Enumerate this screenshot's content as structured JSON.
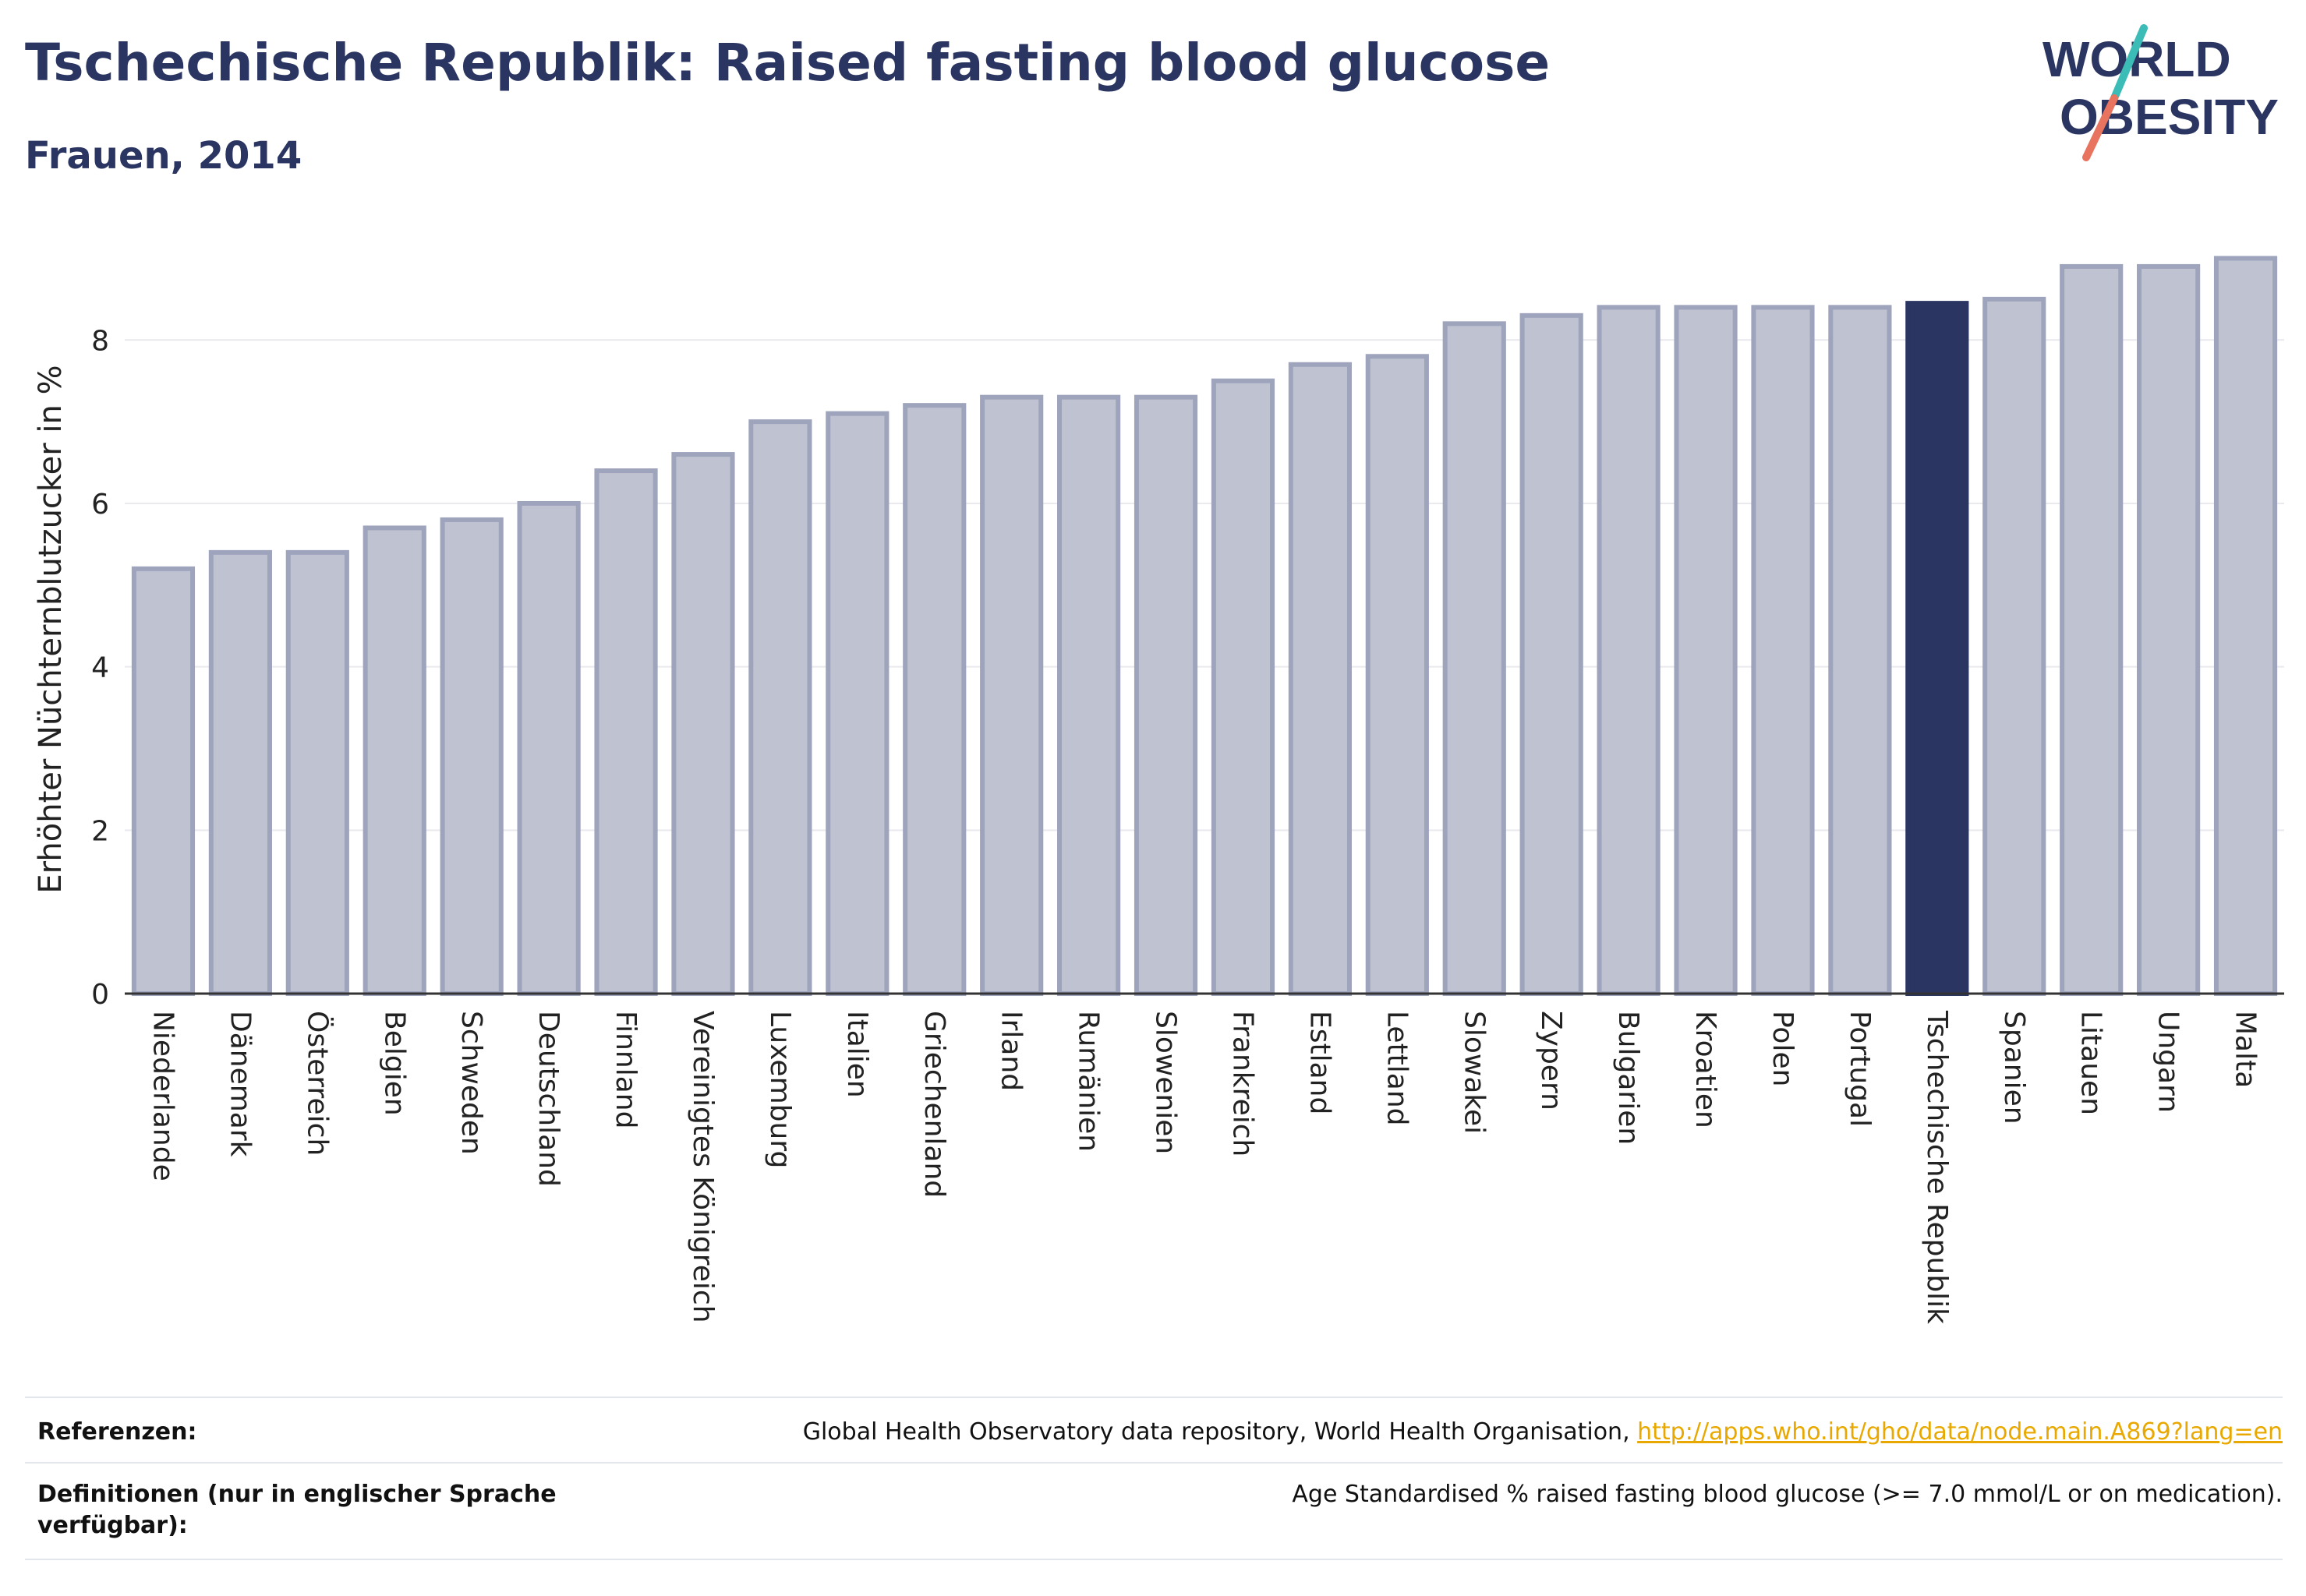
{
  "header": {
    "title": "Tschechische Republik: Raised fasting blood glucose",
    "subtitle": "Frauen, 2014"
  },
  "logo": {
    "line1": "WORLD",
    "line2": "OBESITY"
  },
  "colors": {
    "bar": "#bfc2d0",
    "bar_edge": "#9fa4bd",
    "highlight": "#2b3561",
    "axis": "#333333",
    "grid": "#e9e9ee",
    "accent_teal": "#3bbcb6",
    "accent_coral": "#e8735f"
  },
  "chart_data": {
    "type": "bar",
    "ylabel": "Erhöhter Nüchternblutzucker in %",
    "ylim": [
      0,
      9.3
    ],
    "yticks": [
      0,
      2,
      4,
      6,
      8
    ],
    "grid": true,
    "highlight": "Tschechische Republik",
    "categories": [
      "Niederlande",
      "Dänemark",
      "Österreich",
      "Belgien",
      "Schweden",
      "Deutschland",
      "Finnland",
      "Vereinigtes Königreich",
      "Luxemburg",
      "Italien",
      "Griechenland",
      "Irland",
      "Rumänien",
      "Slowenien",
      "Frankreich",
      "Estland",
      "Lettland",
      "Slowakei",
      "Zypern",
      "Bulgarien",
      "Kroatien",
      "Polen",
      "Portugal",
      "Tschechische Republik",
      "Spanien",
      "Litauen",
      "Ungarn",
      "Malta"
    ],
    "values": [
      5.2,
      5.4,
      5.4,
      5.7,
      5.8,
      6.0,
      6.4,
      6.6,
      7.0,
      7.1,
      7.2,
      7.3,
      7.3,
      7.3,
      7.5,
      7.7,
      7.8,
      8.2,
      8.3,
      8.4,
      8.4,
      8.4,
      8.4,
      8.45,
      8.5,
      8.9,
      8.9,
      9.0
    ]
  },
  "footer": {
    "references_label": "Referenzen:",
    "references_text": "Global Health Observatory data repository, World Health Organisation, ",
    "references_link": "http://apps.who.int/gho/data/node.main.A869?lang=en",
    "definitions_label": "Definitionen (nur in englischer Sprache verfügbar):",
    "definitions_text": "Age Standardised % raised fasting blood glucose (>= 7.0 mmol/L or on medication)."
  }
}
